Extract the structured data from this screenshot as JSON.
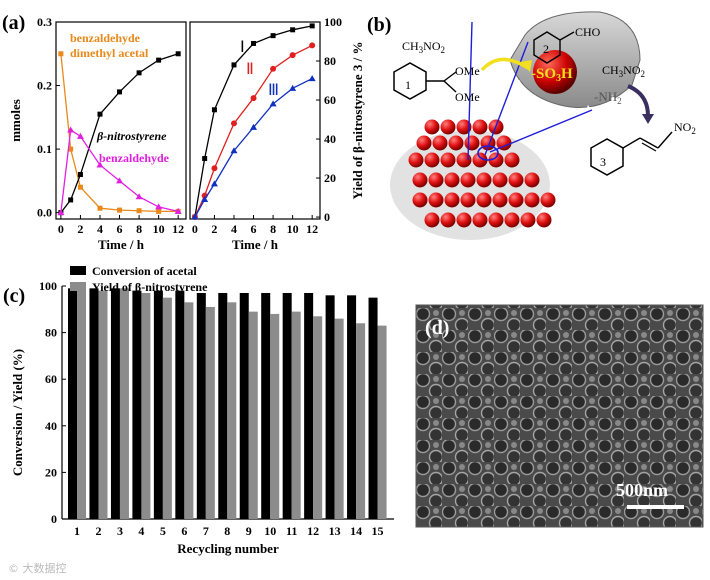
{
  "panel_labels": {
    "a": "(a)",
    "b": "(b)",
    "c": "(c)",
    "d": "(d)"
  },
  "watermark": "© 大数据控",
  "chart_data": [
    {
      "id": "a-left",
      "type": "line",
      "x": [
        0,
        1,
        2,
        4,
        6,
        8,
        10,
        12
      ],
      "xlabel": "Time / h",
      "ylabel": "mmoles",
      "xlim": [
        -0.5,
        12.8
      ],
      "ylim": [
        -0.01,
        0.3
      ],
      "xticks": [
        0,
        2,
        4,
        6,
        8,
        10,
        12
      ],
      "yticks": [
        0.0,
        0.1,
        0.2,
        0.3
      ],
      "ytick_labels": [
        "0.0",
        "0.1",
        "0.2",
        "0.3"
      ],
      "series": [
        {
          "name": "benzaldehyde dimethyl acetal",
          "color": "#e8891a",
          "marker": "square",
          "values": [
            0.25,
            0.1,
            0.04,
            0.007,
            0.004,
            0.003,
            0.002,
            0.002
          ]
        },
        {
          "name": "β-nitrostyrene",
          "color": "#000000",
          "marker": "square",
          "values": [
            0.0,
            0.02,
            0.06,
            0.155,
            0.19,
            0.22,
            0.24,
            0.25
          ]
        },
        {
          "name": "benzaldehyde",
          "color": "#e020e0",
          "marker": "triangle",
          "values": [
            0.0,
            0.13,
            0.12,
            0.075,
            0.05,
            0.025,
            0.009,
            0.002
          ]
        }
      ],
      "annotations": [
        "benzaldehyde",
        "dimethyl acetal",
        "β-nitrostyrene",
        "benzaldehyde"
      ]
    },
    {
      "id": "a-right",
      "type": "line",
      "x": [
        0,
        1,
        2,
        4,
        6,
        8,
        10,
        12
      ],
      "xlabel": "Time / h",
      "ylabel": "Yield of β-nitrostyrene 3 / %",
      "xlim": [
        -0.5,
        12.8
      ],
      "ylim": [
        -1,
        100
      ],
      "xticks": [
        0,
        2,
        4,
        6,
        8,
        10,
        12
      ],
      "yticks": [
        0,
        20,
        40,
        60,
        80,
        100
      ],
      "series": [
        {
          "name": "Ⅰ",
          "color": "#000000",
          "marker": "square",
          "values": [
            0,
            30,
            55,
            78,
            89,
            93,
            96,
            98
          ]
        },
        {
          "name": "Ⅱ",
          "color": "#e02020",
          "marker": "circle",
          "values": [
            0,
            11,
            25,
            48,
            61,
            76,
            83,
            88
          ]
        },
        {
          "name": "Ⅲ",
          "color": "#1030c0",
          "marker": "triangle",
          "values": [
            0,
            9,
            17,
            34,
            46,
            58,
            66,
            71
          ]
        }
      ]
    },
    {
      "id": "c",
      "type": "bar",
      "categories": [
        "1",
        "2",
        "3",
        "4",
        "5",
        "6",
        "7",
        "8",
        "9",
        "10",
        "11",
        "12",
        "13",
        "14",
        "15"
      ],
      "xlabel": "Recycling number",
      "ylabel": "Conversion / Yield (%)",
      "ylim": [
        0,
        100
      ],
      "yticks": [
        0,
        20,
        40,
        60,
        80,
        100
      ],
      "legend_position": "top-left",
      "series": [
        {
          "name": "Conversion of acetal",
          "color": "#000000",
          "values": [
            99,
            99,
            99,
            98,
            98,
            98,
            97,
            97,
            97,
            97,
            97,
            97,
            96,
            96,
            95
          ]
        },
        {
          "name": "Yield of β-nitrostyrene",
          "color": "#8c8c8c",
          "values": [
            99,
            98,
            99,
            97,
            95,
            93,
            91,
            93,
            89,
            88,
            89,
            87,
            86,
            84,
            83
          ]
        }
      ]
    }
  ],
  "scheme_b": {
    "reagent_top": "CH3NO2",
    "label_1": "1",
    "label_2": "2",
    "label_3": "3",
    "ome_1": "OMe",
    "ome_2": "OMe",
    "cho": "CHO",
    "so3h": "-SO3H",
    "nh2": "-NH2",
    "reagent_right": "CH3NO2",
    "no2": "NO2"
  },
  "panel_d": {
    "scale_bar": "500nm"
  }
}
